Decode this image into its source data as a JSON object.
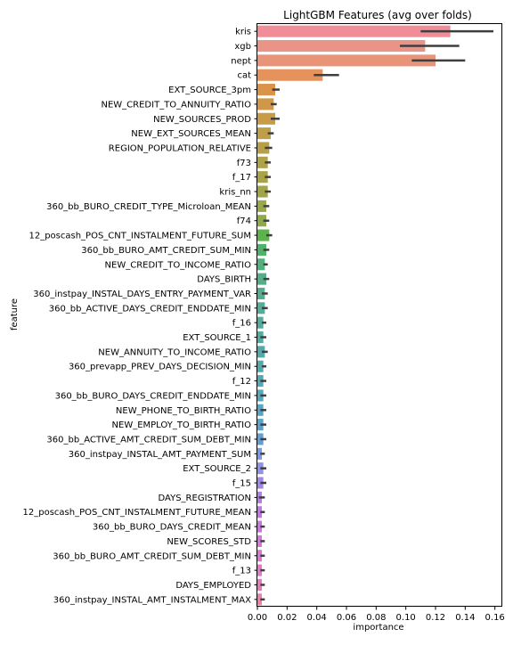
{
  "chart_data": {
    "type": "bar",
    "orientation": "horizontal",
    "title": "LightGBM Features (avg over folds)",
    "xlabel": "importance",
    "ylabel": "feature",
    "xlim": [
      0.0,
      0.165
    ],
    "xticks": [
      "0.00",
      "0.02",
      "0.04",
      "0.06",
      "0.08",
      "0.10",
      "0.12",
      "0.14",
      "0.16"
    ],
    "grid": false,
    "categories": [
      "kris",
      "xgb",
      "nept",
      "cat",
      "EXT_SOURCE_3pm",
      "NEW_CREDIT_TO_ANNUITY_RATIO",
      "NEW_SOURCES_PROD",
      "NEW_EXT_SOURCES_MEAN",
      "REGION_POPULATION_RELATIVE",
      "f73",
      "f_17",
      "kris_nn",
      "360_bb_BURO_CREDIT_TYPE_Microloan_MEAN",
      "f74",
      "12_poscash_POS_CNT_INSTALMENT_FUTURE_SUM",
      "360_bb_BURO_AMT_CREDIT_SUM_MIN",
      "NEW_CREDIT_TO_INCOME_RATIO",
      "DAYS_BIRTH",
      "360_instpay_INSTAL_DAYS_ENTRY_PAYMENT_VAR",
      "360_bb_ACTIVE_DAYS_CREDIT_ENDDATE_MIN",
      "f_16",
      "EXT_SOURCE_1",
      "NEW_ANNUITY_TO_INCOME_RATIO",
      "360_prevapp_PREV_DAYS_DECISION_MIN",
      "f_12",
      "360_bb_BURO_DAYS_CREDIT_ENDDATE_MIN",
      "NEW_PHONE_TO_BIRTH_RATIO",
      "NEW_EMPLOY_TO_BIRTH_RATIO",
      "360_bb_ACTIVE_AMT_CREDIT_SUM_DEBT_MIN",
      "360_instpay_INSTAL_AMT_PAYMENT_SUM",
      "EXT_SOURCE_2",
      "f_15",
      "DAYS_REGISTRATION",
      "12_poscash_POS_CNT_INSTALMENT_FUTURE_MEAN",
      "360_bb_BURO_DAYS_CREDIT_MEAN",
      "NEW_SCORES_STD",
      "360_bb_BURO_AMT_CREDIT_SUM_DEBT_MIN",
      "f_13",
      "DAYS_EMPLOYED",
      "360_instpay_INSTAL_AMT_INSTALMENT_MAX"
    ],
    "values": [
      0.13,
      0.113,
      0.12,
      0.044,
      0.012,
      0.011,
      0.012,
      0.009,
      0.008,
      0.007,
      0.007,
      0.007,
      0.006,
      0.006,
      0.008,
      0.006,
      0.005,
      0.006,
      0.005,
      0.005,
      0.004,
      0.004,
      0.005,
      0.004,
      0.004,
      0.004,
      0.004,
      0.004,
      0.004,
      0.003,
      0.004,
      0.004,
      0.003,
      0.003,
      0.003,
      0.003,
      0.003,
      0.003,
      0.003,
      0.003
    ],
    "errors": [
      [
        0.11,
        0.159
      ],
      [
        0.096,
        0.136
      ],
      [
        0.104,
        0.14
      ],
      [
        0.038,
        0.055
      ],
      [
        0.01,
        0.015
      ],
      [
        0.009,
        0.013
      ],
      [
        0.009,
        0.015
      ],
      [
        0.007,
        0.011
      ],
      [
        0.005,
        0.01
      ],
      [
        0.005,
        0.009
      ],
      [
        0.005,
        0.009
      ],
      [
        0.005,
        0.009
      ],
      [
        0.004,
        0.008
      ],
      [
        0.004,
        0.008
      ],
      [
        0.006,
        0.01
      ],
      [
        0.004,
        0.008
      ],
      [
        0.004,
        0.007
      ],
      [
        0.004,
        0.008
      ],
      [
        0.003,
        0.007
      ],
      [
        0.003,
        0.007
      ],
      [
        0.003,
        0.006
      ],
      [
        0.002,
        0.006
      ],
      [
        0.003,
        0.007
      ],
      [
        0.003,
        0.006
      ],
      [
        0.002,
        0.006
      ],
      [
        0.002,
        0.006
      ],
      [
        0.002,
        0.006
      ],
      [
        0.002,
        0.006
      ],
      [
        0.002,
        0.006
      ],
      [
        0.002,
        0.005
      ],
      [
        0.002,
        0.006
      ],
      [
        0.002,
        0.006
      ],
      [
        0.001,
        0.005
      ],
      [
        0.002,
        0.005
      ],
      [
        0.002,
        0.005
      ],
      [
        0.002,
        0.005
      ],
      [
        0.002,
        0.005
      ],
      [
        0.002,
        0.005
      ],
      [
        0.002,
        0.005
      ],
      [
        0.002,
        0.005
      ]
    ],
    "colors": [
      "#f08d98",
      "#ea9488",
      "#e99478",
      "#e5925d",
      "#da9349",
      "#cf9848",
      "#c79b48",
      "#bf9e48",
      "#b79f48",
      "#b0a248",
      "#a8a348",
      "#a1a548",
      "#99a848",
      "#8faa48",
      "#5db24a",
      "#52b06d",
      "#54b07e",
      "#54af88",
      "#53ae8f",
      "#52ae96",
      "#52ad9c",
      "#52aca2",
      "#52aba8",
      "#53aaae",
      "#53a9b5",
      "#56a7bc",
      "#5aa5c4",
      "#5da2cc",
      "#629fd6",
      "#7899e5",
      "#8d93e8",
      "#a088e8",
      "#b37ee8",
      "#c277e8",
      "#cc74e3",
      "#d576d9",
      "#db77cf",
      "#e17ac4",
      "#e67cb7",
      "#eb80a9"
    ]
  }
}
